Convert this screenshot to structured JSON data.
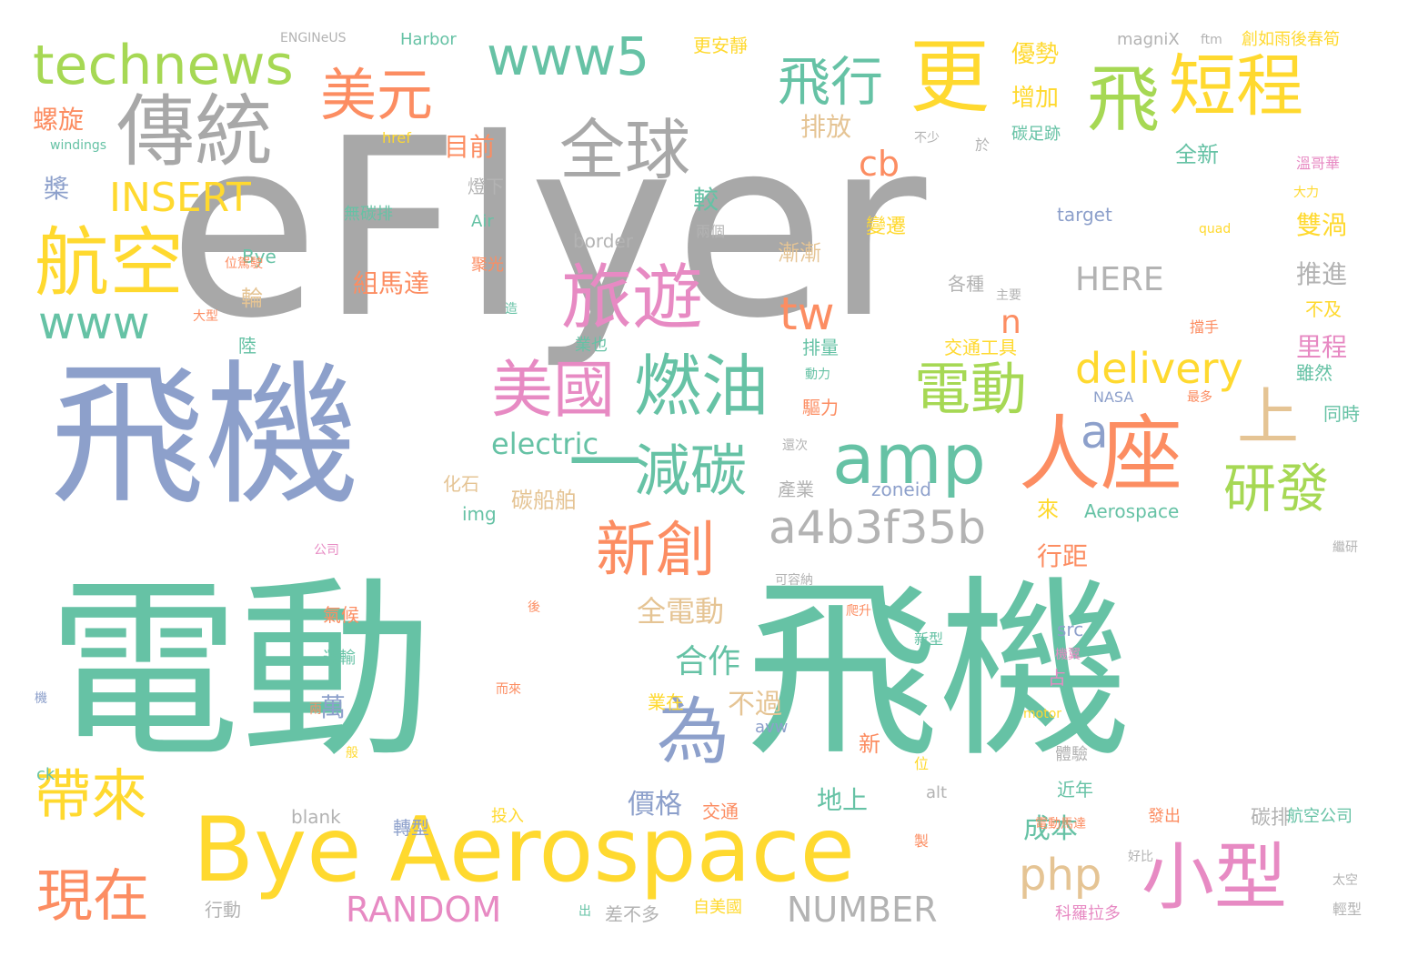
{
  "title": "",
  "palette": {
    "gray": "#a8a8a8",
    "green": "#66c2a5",
    "orange": "#fc8d62",
    "blue": "#8da0cb",
    "pink": "#e78ac3",
    "lime": "#a6d854",
    "yellow": "#ffd92f",
    "tan": "#e5c494",
    "light_gray": "#b3b3b3"
  },
  "words": [
    {
      "text": "eFlyer",
      "color": "gray"
    },
    {
      "text": "電動",
      "color": "green"
    },
    {
      "text": "飛機",
      "color": "green"
    },
    {
      "text": "飛機",
      "color": "blue"
    },
    {
      "text": "Bye Aerospace",
      "color": "yellow"
    },
    {
      "text": "傳統",
      "color": "gray"
    },
    {
      "text": "更",
      "color": "yellow"
    },
    {
      "text": "technews",
      "color": "lime"
    },
    {
      "text": "美元",
      "color": "orange"
    },
    {
      "text": "www5",
      "color": "green"
    },
    {
      "text": "飛行",
      "color": "green"
    },
    {
      "text": "飛",
      "color": "lime"
    },
    {
      "text": "短程",
      "color": "yellow"
    },
    {
      "text": "全球",
      "color": "gray"
    },
    {
      "text": "航空",
      "color": "yellow"
    },
    {
      "text": "INSERT",
      "color": "yellow"
    },
    {
      "text": "旅遊",
      "color": "pink"
    },
    {
      "text": "www",
      "color": "green"
    },
    {
      "text": "人座",
      "color": "orange"
    },
    {
      "text": "上",
      "color": "tan"
    },
    {
      "text": "amp",
      "color": "green"
    },
    {
      "text": "燃油",
      "color": "green"
    },
    {
      "text": "美國",
      "color": "pink"
    },
    {
      "text": "電動",
      "color": "lime"
    },
    {
      "text": "研發",
      "color": "lime"
    },
    {
      "text": "delivery",
      "color": "yellow"
    },
    {
      "text": "減碳",
      "color": "green"
    },
    {
      "text": "新創",
      "color": "orange"
    },
    {
      "text": "a4b3f35b",
      "color": "light_gray"
    },
    {
      "text": "為",
      "color": "blue"
    },
    {
      "text": "小型",
      "color": "pink"
    },
    {
      "text": "帶來",
      "color": "yellow"
    },
    {
      "text": "現在",
      "color": "orange"
    },
    {
      "text": "php",
      "color": "tan"
    },
    {
      "text": "RANDOM",
      "color": "pink"
    },
    {
      "text": "NUMBER",
      "color": "light_gray"
    },
    {
      "text": "cb",
      "color": "orange"
    },
    {
      "text": "tw",
      "color": "orange"
    },
    {
      "text": "HERE",
      "color": "light_gray"
    },
    {
      "text": "electric",
      "color": "green"
    },
    {
      "text": "a",
      "color": "blue"
    },
    {
      "text": "n",
      "color": "orange"
    },
    {
      "text": "一",
      "color": "green"
    },
    {
      "text": "ENGINeUS",
      "color": "light_gray"
    },
    {
      "text": "Harbor",
      "color": "green"
    },
    {
      "text": "magniX",
      "color": "light_gray"
    },
    {
      "text": "ftm",
      "color": "light_gray"
    },
    {
      "text": "創如雨後春筍",
      "color": "yellow"
    },
    {
      "text": "更安靜",
      "color": "yellow"
    },
    {
      "text": "優勢",
      "color": "yellow"
    },
    {
      "text": "增加",
      "color": "yellow"
    },
    {
      "text": "排放",
      "color": "tan"
    },
    {
      "text": "碳足跡",
      "color": "green"
    },
    {
      "text": "全新",
      "color": "green"
    },
    {
      "text": "雙渦",
      "color": "yellow"
    },
    {
      "text": "推進",
      "color": "light_gray"
    },
    {
      "text": "里程",
      "color": "pink"
    },
    {
      "text": "不及",
      "color": "yellow"
    },
    {
      "text": "雖然",
      "color": "green"
    },
    {
      "text": "同時",
      "color": "green"
    },
    {
      "text": "螺旋",
      "color": "orange"
    },
    {
      "text": "槳",
      "color": "blue"
    },
    {
      "text": "目前",
      "color": "orange"
    },
    {
      "text": "燈下",
      "color": "light_gray"
    },
    {
      "text": "較",
      "color": "green"
    },
    {
      "text": "組馬達",
      "color": "orange"
    },
    {
      "text": "輪",
      "color": "tan"
    },
    {
      "text": "漸漸",
      "color": "tan"
    },
    {
      "text": "變遷",
      "color": "yellow"
    },
    {
      "text": "各種",
      "color": "light_gray"
    },
    {
      "text": "交通工具",
      "color": "yellow"
    },
    {
      "text": "排量",
      "color": "green"
    },
    {
      "text": "驅力",
      "color": "orange"
    },
    {
      "text": "行距",
      "color": "orange"
    },
    {
      "text": "全電動",
      "color": "tan"
    },
    {
      "text": "合作",
      "color": "green"
    },
    {
      "text": "萬",
      "color": "blue"
    },
    {
      "text": "不過",
      "color": "tan"
    },
    {
      "text": "價格",
      "color": "blue"
    },
    {
      "text": "地上",
      "color": "green"
    },
    {
      "text": "成本",
      "color": "green"
    },
    {
      "text": "碳排",
      "color": "light_gray"
    },
    {
      "text": "近年",
      "color": "green"
    },
    {
      "text": "碳船舶",
      "color": "tan"
    },
    {
      "text": "來",
      "color": "yellow"
    },
    {
      "text": "化石",
      "color": "tan"
    },
    {
      "text": "產業",
      "color": "light_gray"
    },
    {
      "text": "zoneid",
      "color": "blue"
    },
    {
      "text": "Aerospace",
      "color": "green"
    },
    {
      "text": "img",
      "color": "green"
    },
    {
      "text": "target",
      "color": "blue"
    },
    {
      "text": "border",
      "color": "light_gray"
    },
    {
      "text": "無碳排",
      "color": "green"
    },
    {
      "text": "href",
      "color": "yellow"
    },
    {
      "text": "windings",
      "color": "green"
    },
    {
      "text": "Air",
      "color": "green"
    },
    {
      "text": "Bye",
      "color": "green"
    },
    {
      "text": "聚光",
      "color": "orange"
    },
    {
      "text": "位駕駛",
      "color": "orange"
    },
    {
      "text": "陸",
      "color": "green"
    },
    {
      "text": "業也",
      "color": "green"
    },
    {
      "text": "業在",
      "color": "yellow"
    },
    {
      "text": "avw",
      "color": "blue"
    },
    {
      "text": "氣候",
      "color": "orange"
    },
    {
      "text": "運輸",
      "color": "green"
    },
    {
      "text": "src",
      "color": "blue"
    },
    {
      "text": "占",
      "color": "pink"
    },
    {
      "text": "體驗",
      "color": "light_gray"
    },
    {
      "text": "新型",
      "color": "green"
    },
    {
      "text": "新",
      "color": "orange"
    },
    {
      "text": "位",
      "color": "yellow"
    },
    {
      "text": "alt",
      "color": "light_gray"
    },
    {
      "text": "blank",
      "color": "light_gray"
    },
    {
      "text": "轉型",
      "color": "blue"
    },
    {
      "text": "交通",
      "color": "orange"
    },
    {
      "text": "投入",
      "color": "yellow"
    },
    {
      "text": "製",
      "color": "orange"
    },
    {
      "text": "發出",
      "color": "orange"
    },
    {
      "text": "航空公司",
      "color": "green"
    },
    {
      "text": "行動",
      "color": "light_gray"
    },
    {
      "text": "差不多",
      "color": "light_gray"
    },
    {
      "text": "自美國",
      "color": "yellow"
    },
    {
      "text": "科羅拉多",
      "color": "pink"
    },
    {
      "text": "輕型",
      "color": "light_gray"
    },
    {
      "text": "太空",
      "color": "light_gray"
    },
    {
      "text": "ck",
      "color": "green"
    },
    {
      "text": "motor",
      "color": "yellow"
    },
    {
      "text": "NASA",
      "color": "blue"
    },
    {
      "text": "最多",
      "color": "orange"
    },
    {
      "text": "主要",
      "color": "light_gray"
    },
    {
      "text": "兩個",
      "color": "light_gray"
    },
    {
      "text": "大型",
      "color": "orange"
    },
    {
      "text": "大力",
      "color": "yellow"
    },
    {
      "text": "quad",
      "color": "yellow"
    },
    {
      "text": "不少",
      "color": "light_gray"
    },
    {
      "text": "於",
      "color": "light_gray"
    },
    {
      "text": "還次",
      "color": "light_gray"
    },
    {
      "text": "可容納",
      "color": "light_gray"
    },
    {
      "text": "繼研",
      "color": "light_gray"
    },
    {
      "text": "溫哥華",
      "color": "pink"
    },
    {
      "text": "公司",
      "color": "pink"
    },
    {
      "text": "擋手",
      "color": "orange"
    },
    {
      "text": "動力",
      "color": "green"
    },
    {
      "text": "出",
      "color": "green"
    },
    {
      "text": "後",
      "color": "orange"
    },
    {
      "text": "兩",
      "color": "orange"
    },
    {
      "text": "般",
      "color": "yellow"
    },
    {
      "text": "機翼",
      "color": "pink"
    },
    {
      "text": "而來",
      "color": "orange"
    },
    {
      "text": "電動馬達",
      "color": "orange"
    },
    {
      "text": "好比",
      "color": "light_gray"
    },
    {
      "text": "爬升",
      "color": "orange"
    },
    {
      "text": "造",
      "color": "green"
    },
    {
      "text": "機",
      "color": "blue"
    }
  ]
}
